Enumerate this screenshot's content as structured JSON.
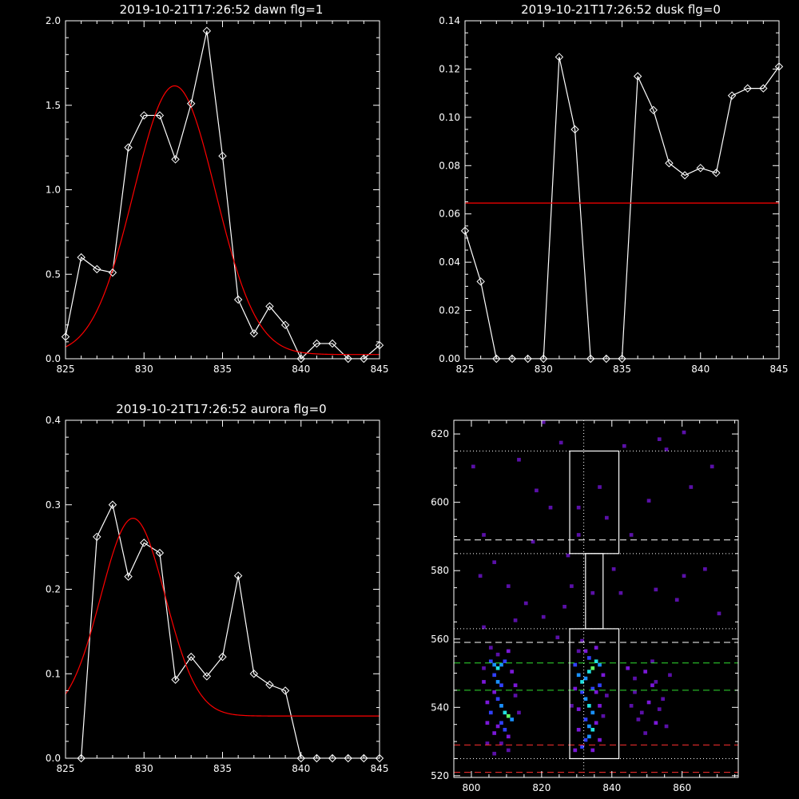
{
  "chart_data": [
    {
      "type": "line",
      "title": "2019-10-21T17:26:52 dawn flg=1",
      "xlim": [
        825,
        845
      ],
      "ylim": [
        0,
        2.0
      ],
      "xticks": [
        825,
        830,
        835,
        840,
        845
      ],
      "yticks": [
        0.0,
        0.5,
        1.0,
        1.5,
        2.0
      ],
      "ytick_labels": [
        "0.0",
        "0.5",
        "1.0",
        "1.5",
        "2.0"
      ],
      "series": [
        {
          "color": "#ffffff",
          "marker": "diamond",
          "x": [
            825,
            826,
            827,
            828,
            829,
            830,
            831,
            832,
            833,
            834,
            835,
            836,
            837,
            838,
            839,
            840,
            841,
            842,
            843,
            844,
            845
          ],
          "y": [
            0.13,
            0.6,
            0.53,
            0.51,
            1.25,
            1.44,
            1.44,
            1.18,
            1.51,
            1.94,
            1.2,
            0.35,
            0.15,
            0.31,
            0.2,
            0.0,
            0.09,
            0.09,
            0.0,
            0.0,
            0.08
          ]
        },
        {
          "color": "#ff0000",
          "marker": "none",
          "curve": "gaussian",
          "amp": 1.59,
          "center": 831.95,
          "sigma": 2.6,
          "offset": 0.025
        }
      ]
    },
    {
      "type": "line",
      "title": "2019-10-21T17:26:52 dusk flg=0",
      "xlim": [
        825,
        845
      ],
      "ylim": [
        0,
        0.14
      ],
      "xticks": [
        825,
        830,
        835,
        840,
        845
      ],
      "yticks": [
        0.0,
        0.02,
        0.04,
        0.06,
        0.08,
        0.1,
        0.12,
        0.14
      ],
      "ytick_labels": [
        "0.00",
        "0.02",
        "0.04",
        "0.06",
        "0.08",
        "0.10",
        "0.12",
        "0.14"
      ],
      "series": [
        {
          "color": "#ffffff",
          "marker": "diamond",
          "x": [
            825,
            826,
            827,
            828,
            829,
            830,
            831,
            832,
            833,
            834,
            835,
            836,
            837,
            838,
            839,
            840,
            841,
            842,
            843,
            844,
            845
          ],
          "y": [
            0.053,
            0.032,
            0.0,
            0.0,
            0.0,
            0.0,
            0.125,
            0.095,
            0.0,
            0.0,
            0.0,
            0.117,
            0.103,
            0.081,
            0.076,
            0.079,
            0.077,
            0.109,
            0.112,
            0.112,
            0.121
          ]
        },
        {
          "color": "#ff0000",
          "marker": "none",
          "curve": "constant",
          "value": 0.0645
        }
      ]
    },
    {
      "type": "line",
      "title": "2019-10-21T17:26:52 aurora flg=0",
      "xlim": [
        825,
        845
      ],
      "ylim": [
        0,
        0.4
      ],
      "xticks": [
        825,
        830,
        835,
        840,
        845
      ],
      "yticks": [
        0.0,
        0.1,
        0.2,
        0.3,
        0.4
      ],
      "ytick_labels": [
        "0.0",
        "0.1",
        "0.2",
        "0.3",
        "0.4"
      ],
      "series": [
        {
          "color": "#ffffff",
          "marker": "diamond",
          "x": [
            826,
            827,
            828,
            829,
            830,
            831,
            832,
            833,
            834,
            835,
            836,
            837,
            838,
            839,
            840,
            841,
            842,
            843,
            844,
            845
          ],
          "y": [
            0.0,
            0.262,
            0.3,
            0.215,
            0.255,
            0.243,
            0.093,
            0.12,
            0.097,
            0.12,
            0.216,
            0.1,
            0.087,
            0.08,
            0.0,
            0.0,
            0.0,
            0.0,
            0.0,
            0.0
          ]
        },
        {
          "color": "#ff0000",
          "marker": "none",
          "curve": "gaussian",
          "amp": 0.234,
          "center": 829.3,
          "sigma": 2.05,
          "offset": 0.05
        }
      ]
    },
    {
      "type": "heatmap",
      "title": "",
      "xlim": [
        795,
        876
      ],
      "ylim": [
        519.5,
        624
      ],
      "xticks": [
        800,
        820,
        840,
        860
      ],
      "yticks": [
        520,
        540,
        560,
        580,
        600,
        620
      ],
      "overlays": {
        "boxes": [
          {
            "x0": 828,
            "x1": 842,
            "y0": 585,
            "y1": 615
          },
          {
            "x0": 828,
            "x1": 842,
            "y0": 525,
            "y1": 563
          },
          {
            "x0": 832.5,
            "x1": 837.5,
            "y0": 563,
            "y1": 585
          }
        ],
        "dotted_vertical": [
          832
        ],
        "dotted_horizontal": [
          615,
          585,
          563,
          525
        ],
        "dashed_white": [
          589,
          559
        ],
        "dashed_green": [
          553,
          545
        ],
        "dashed_red": [
          529,
          521
        ]
      },
      "colorscale": [
        "#2a0060",
        "#5a10a8",
        "#7a18d8",
        "#3040ff",
        "#1a90ff",
        "#20e0e0",
        "#60ff60"
      ],
      "cells": [
        [
          805,
          553,
          3
        ],
        [
          806,
          552,
          4
        ],
        [
          807,
          551,
          5
        ],
        [
          808,
          552,
          4
        ],
        [
          809,
          553,
          3
        ],
        [
          806,
          549,
          3
        ],
        [
          807,
          547,
          4
        ],
        [
          808,
          546,
          3
        ],
        [
          806,
          544,
          2
        ],
        [
          807,
          542,
          3
        ],
        [
          808,
          540,
          4
        ],
        [
          809,
          538,
          5
        ],
        [
          810,
          537,
          6
        ],
        [
          811,
          536,
          4
        ],
        [
          808,
          535,
          3
        ],
        [
          807,
          534,
          2
        ],
        [
          806,
          532,
          2
        ],
        [
          809,
          533,
          3
        ],
        [
          810,
          531,
          2
        ],
        [
          804,
          541,
          2
        ],
        [
          803,
          547,
          2
        ],
        [
          812,
          546,
          2
        ],
        [
          811,
          550,
          2
        ],
        [
          804,
          535,
          2
        ],
        [
          805,
          538,
          3
        ],
        [
          808,
          529,
          1
        ],
        [
          810,
          527,
          1
        ],
        [
          806,
          526,
          1
        ],
        [
          812,
          543,
          1
        ],
        [
          803,
          551,
          1
        ],
        [
          807,
          555,
          1
        ],
        [
          810,
          556,
          2
        ],
        [
          805,
          557,
          1
        ],
        [
          813,
          538,
          1
        ],
        [
          804,
          529,
          1
        ],
        [
          829,
          552,
          3
        ],
        [
          830,
          549,
          4
        ],
        [
          831,
          547,
          5
        ],
        [
          832,
          548,
          4
        ],
        [
          833,
          550,
          5
        ],
        [
          834,
          551,
          6
        ],
        [
          835,
          553,
          5
        ],
        [
          836,
          552,
          4
        ],
        [
          833,
          554,
          3
        ],
        [
          832,
          556,
          2
        ],
        [
          831,
          544,
          3
        ],
        [
          832,
          542,
          4
        ],
        [
          833,
          540,
          5
        ],
        [
          834,
          538,
          4
        ],
        [
          832,
          536,
          3
        ],
        [
          833,
          534,
          4
        ],
        [
          834,
          533,
          5
        ],
        [
          833,
          531,
          4
        ],
        [
          832,
          530,
          3
        ],
        [
          831,
          528,
          3
        ],
        [
          830,
          539,
          2
        ],
        [
          834,
          545,
          3
        ],
        [
          835,
          544,
          2
        ],
        [
          836,
          546,
          3
        ],
        [
          829,
          545,
          2
        ],
        [
          830,
          533,
          2
        ],
        [
          835,
          535,
          2
        ],
        [
          836,
          540,
          2
        ],
        [
          837,
          549,
          2
        ],
        [
          829,
          527,
          2
        ],
        [
          830,
          556,
          1
        ],
        [
          836,
          530,
          2
        ],
        [
          834,
          527,
          2
        ],
        [
          838,
          543,
          1
        ],
        [
          828,
          540,
          1
        ],
        [
          837,
          537,
          1
        ],
        [
          835,
          557,
          2
        ],
        [
          831,
          559,
          1
        ],
        [
          844,
          551,
          2
        ],
        [
          846,
          548,
          1
        ],
        [
          849,
          550,
          2
        ],
        [
          851,
          546,
          2
        ],
        [
          852,
          547,
          1
        ],
        [
          850,
          541,
          2
        ],
        [
          853,
          539,
          1
        ],
        [
          848,
          538,
          1
        ],
        [
          852,
          535,
          2
        ],
        [
          855,
          534,
          1
        ],
        [
          847,
          536,
          1
        ],
        [
          849,
          532,
          1
        ],
        [
          854,
          542,
          1
        ],
        [
          856,
          549,
          1
        ],
        [
          846,
          544,
          1
        ],
        [
          851,
          553,
          1
        ],
        [
          845,
          540,
          1
        ],
        [
          800,
          610,
          1
        ],
        [
          818,
          603,
          1
        ],
        [
          822,
          598,
          1
        ],
        [
          813,
          612,
          1
        ],
        [
          855,
          615,
          1
        ],
        [
          860,
          620,
          1
        ],
        [
          853,
          618,
          1
        ],
        [
          803,
          590,
          1
        ],
        [
          817,
          588,
          1
        ],
        [
          850,
          600,
          1
        ],
        [
          845,
          590,
          1
        ],
        [
          862,
          604,
          1
        ],
        [
          868,
          610,
          1
        ],
        [
          802,
          578,
          1
        ],
        [
          815,
          570,
          1
        ],
        [
          820,
          566,
          1
        ],
        [
          810,
          575,
          1
        ],
        [
          840,
          580,
          1
        ],
        [
          852,
          574,
          1
        ],
        [
          858,
          571,
          1
        ],
        [
          866,
          580,
          1
        ],
        [
          870,
          567,
          1
        ],
        [
          824,
          560,
          1
        ],
        [
          828,
          575,
          1
        ],
        [
          803,
          563,
          1
        ],
        [
          838,
          595,
          1
        ],
        [
          836,
          604,
          1
        ],
        [
          825,
          617,
          1
        ],
        [
          820,
          623,
          1
        ],
        [
          843,
          616,
          1
        ],
        [
          830,
          598,
          1
        ],
        [
          827,
          584,
          1
        ],
        [
          860,
          578,
          1
        ],
        [
          842,
          573,
          1
        ],
        [
          826,
          569,
          1
        ],
        [
          806,
          582,
          1
        ],
        [
          812,
          565,
          1
        ],
        [
          830,
          590,
          1
        ],
        [
          834,
          573,
          1
        ]
      ]
    }
  ]
}
